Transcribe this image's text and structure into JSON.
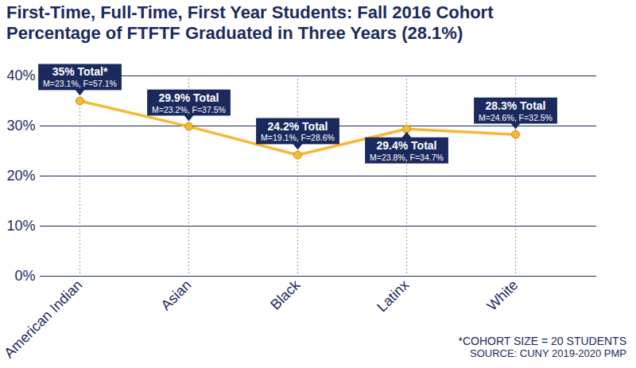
{
  "chart_data": {
    "type": "line",
    "title": "First-Time, Full-Time, First Year Students: Fall 2016 Cohort",
    "subtitle": "Percentage of FTFTF Graduated in Three Years (28.1%)",
    "categories": [
      "American Indian",
      "Asian",
      "Black",
      "Latinx",
      "White"
    ],
    "values": [
      35,
      29.9,
      24.2,
      29.4,
      28.3
    ],
    "value_labels": [
      "35% Total*",
      "29.9% Total",
      "24.2% Total",
      "29.4% Total",
      "28.3% Total"
    ],
    "annotations": [
      "M=23.1%, F=57.1%",
      "M=23.2%, F=37.5%",
      "M=19.1%, F=28.6%",
      "M=23.8%, F=34.7%",
      "M=24.6%, F=32.5%"
    ],
    "color": "#f5b935",
    "marker": "circle",
    "data_labels": true,
    "grid": true,
    "ylim": [
      0,
      40
    ],
    "yticks": [
      {
        "value": 0,
        "label": "0%"
      },
      {
        "value": 10,
        "label": "10%"
      },
      {
        "value": 20,
        "label": "20%"
      },
      {
        "value": 30,
        "label": "30%"
      },
      {
        "value": 40,
        "label": "40%"
      }
    ],
    "caption": [
      "*COHORT SIZE = 20 STUDENTS",
      "SOURCE: CUNY 2019-2020 PMP"
    ]
  }
}
